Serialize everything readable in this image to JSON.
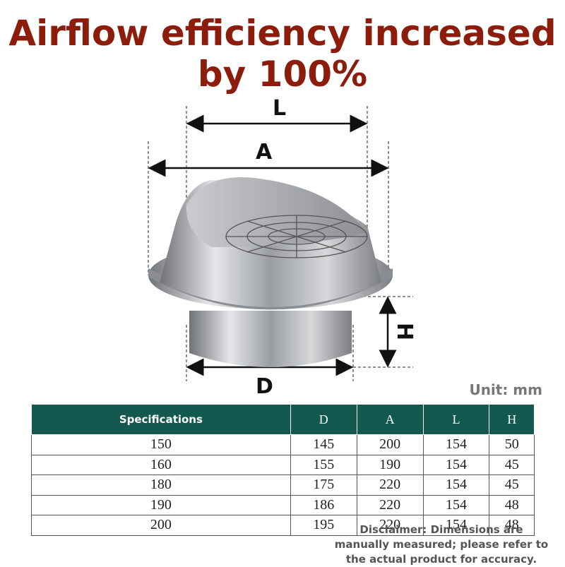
{
  "header": {
    "title_lines": [
      "Airflow efficiency increased",
      "by 100%"
    ]
  },
  "dimensions": {
    "L": "L",
    "A": "A",
    "H": "H",
    "D": "D"
  },
  "unit": "Unit: mm",
  "table": {
    "columns": [
      "Specifications",
      "D",
      "A",
      "L",
      "H"
    ],
    "rows": [
      [
        150,
        145,
        200,
        154,
        50
      ],
      [
        160,
        155,
        190,
        154,
        45
      ],
      [
        180,
        175,
        220,
        154,
        45
      ],
      [
        190,
        186,
        220,
        154,
        48
      ],
      [
        200,
        195,
        220,
        154,
        48
      ]
    ]
  },
  "disclaimer": "Disclaimer: Dimensions are manually measured; please refer to the actual product for accuracy."
}
